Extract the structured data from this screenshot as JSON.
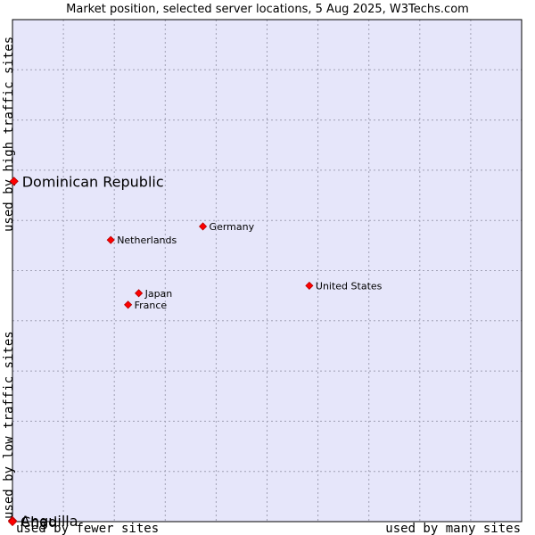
{
  "chart_data": {
    "type": "scatter",
    "title": "Market position, selected server locations, 5 Aug 2025, W3Techs.com",
    "xlabel_left": "used by fewer sites",
    "xlabel_right": "used by many sites",
    "ylabel_bottom": "used by low traffic sites",
    "ylabel_top": "used by high traffic sites",
    "xlim": [
      0,
      100
    ],
    "ylim": [
      0,
      100
    ],
    "grid": true,
    "colors": {
      "plot_bg": "#e6e6fa",
      "grid": "#a0a0b4",
      "marker": "#ff0000",
      "marker_edge": "#b40000"
    },
    "points": [
      {
        "name": "Dominican Republic",
        "x": 0.3,
        "y": 67.8,
        "highlight": true
      },
      {
        "name": "Germany",
        "x": 37.4,
        "y": 58.8,
        "highlight": false
      },
      {
        "name": "Netherlands",
        "x": 19.3,
        "y": 56.1,
        "highlight": false
      },
      {
        "name": "United States",
        "x": 58.3,
        "y": 47.0,
        "highlight": false
      },
      {
        "name": "Japan",
        "x": 24.8,
        "y": 45.5,
        "highlight": false
      },
      {
        "name": "France",
        "x": 22.7,
        "y": 43.2,
        "highlight": false
      },
      {
        "name": "Anguilla",
        "x": 0.0,
        "y": 0.2,
        "highlight": true
      },
      {
        "name": "Chad",
        "x": 0.0,
        "y": 0.0,
        "highlight": true
      }
    ]
  }
}
